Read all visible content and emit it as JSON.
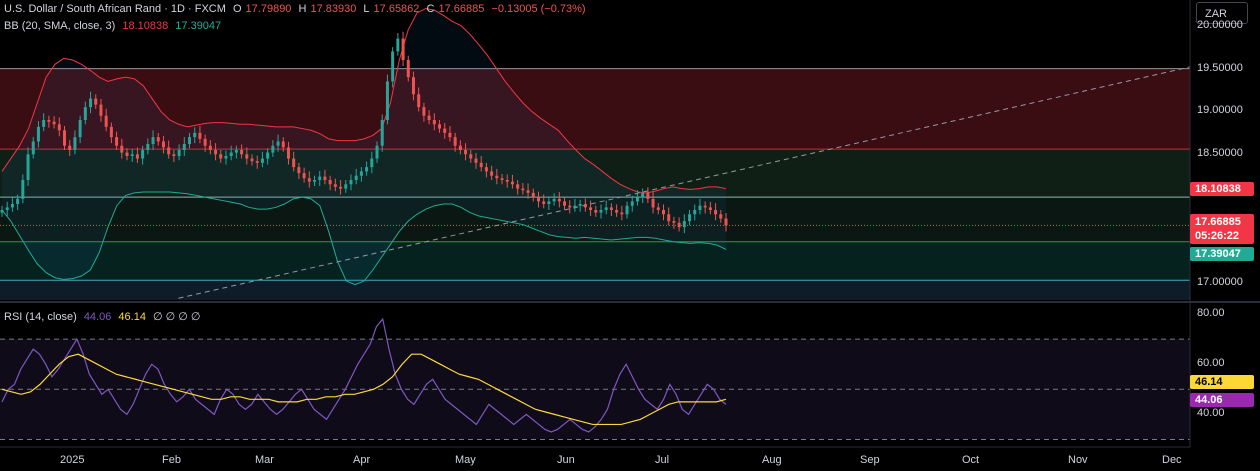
{
  "header": {
    "symbol_title": "U.S. Dollar / South African Rand · 1D · FXCM",
    "ohlc": [
      {
        "key": "O",
        "value": "17.79890"
      },
      {
        "key": "H",
        "value": "17.83930"
      },
      {
        "key": "L",
        "value": "17.65862"
      },
      {
        "key": "C",
        "value": "17.66885"
      }
    ],
    "change": "−0.13005 (−0.73%)"
  },
  "bb_legend": {
    "label": "BB (20, SMA, close, 3)",
    "upper": "18.10838",
    "lower": "17.39047"
  },
  "rsi_legend": {
    "label": "RSI (14, close)",
    "rsi": "44.06",
    "ma": "46.14",
    "extras": "∅ ∅ ∅ ∅"
  },
  "currency_button": "ZAR",
  "badges": {
    "bb_upper": "18.10838",
    "last_price": "17.66885",
    "countdown": "05:26:22",
    "bb_lower": "17.39047",
    "rsi_ma": "46.14",
    "rsi_value": "44.06"
  },
  "colors": {
    "up": "#26a69a",
    "down": "#ef5350",
    "bb_upper": "#f23645",
    "bb_lower": "#22ab94",
    "rsi": "#7e57c2",
    "rsi_ma": "#fdd835"
  },
  "chart_data": [
    {
      "type": "candlestick",
      "title": "U.S. Dollar / South African Rand · 1D · FXCM",
      "price_ticks": [
        "20.00000",
        "19.50000",
        "19.00000",
        "18.50000",
        "17.00000"
      ],
      "ylim": [
        16.8,
        20.3
      ],
      "time_ticks": [
        "2025",
        "Feb",
        "Mar",
        "Apr",
        "May",
        "Jun",
        "Jul",
        "Aug",
        "Sep",
        "Oct",
        "Nov",
        "Dec"
      ],
      "horizontal_levels": [
        19.5,
        18.56,
        18.0,
        17.48,
        17.03
      ],
      "zones": [
        {
          "from": 18.56,
          "to": 19.5,
          "color": "#3a0d12"
        },
        {
          "from": 18.0,
          "to": 18.56,
          "color": "#101f16"
        },
        {
          "from": 17.48,
          "to": 18.0,
          "color": "#0b1712"
        },
        {
          "from": 17.03,
          "to": 17.48,
          "color": "#06221f"
        },
        {
          "from": 16.8,
          "to": 17.03,
          "color": "#0e1c2a"
        }
      ],
      "trendline": {
        "from": [
          0.15,
          16.82
        ],
        "to": [
          1.0,
          19.52
        ]
      },
      "close": [
        17.85,
        17.88,
        17.92,
        17.98,
        18.2,
        18.5,
        18.65,
        18.82,
        18.9,
        18.88,
        18.85,
        18.78,
        18.6,
        18.55,
        18.7,
        18.9,
        19.05,
        19.15,
        19.08,
        18.95,
        18.82,
        18.7,
        18.6,
        18.52,
        18.48,
        18.5,
        18.45,
        18.55,
        18.62,
        18.7,
        18.65,
        18.58,
        18.5,
        18.48,
        18.55,
        18.62,
        18.7,
        18.75,
        18.68,
        18.6,
        18.55,
        18.5,
        18.45,
        18.48,
        18.52,
        18.55,
        18.5,
        18.45,
        18.42,
        18.4,
        18.45,
        18.52,
        18.6,
        18.65,
        18.58,
        18.45,
        18.35,
        18.28,
        18.22,
        18.18,
        18.2,
        18.24,
        18.2,
        18.15,
        18.12,
        18.1,
        18.15,
        18.2,
        18.25,
        18.3,
        18.35,
        18.45,
        18.6,
        18.9,
        19.35,
        19.7,
        19.85,
        19.6,
        19.4,
        19.2,
        19.05,
        18.95,
        18.9,
        18.85,
        18.8,
        18.75,
        18.7,
        18.6,
        18.55,
        18.5,
        18.45,
        18.4,
        18.35,
        18.3,
        18.25,
        18.22,
        18.2,
        18.18,
        18.15,
        18.1,
        18.08,
        18.05,
        18.0,
        17.95,
        17.92,
        17.95,
        17.98,
        17.95,
        17.9,
        17.88,
        17.9,
        17.92,
        17.88,
        17.85,
        17.82,
        17.85,
        17.88,
        17.85,
        17.82,
        17.8,
        17.9,
        17.95,
        18.0,
        18.05,
        17.98,
        17.88,
        17.85,
        17.8,
        17.72,
        17.7,
        17.65,
        17.72,
        17.8,
        17.85,
        17.9,
        17.88,
        17.85,
        17.8,
        17.75,
        17.67
      ],
      "bb_upper": [
        18.3,
        18.45,
        18.6,
        18.8,
        19.1,
        19.4,
        19.55,
        19.62,
        19.6,
        19.55,
        19.48,
        19.4,
        19.35,
        19.38,
        19.4,
        19.38,
        19.3,
        19.15,
        19.0,
        18.9,
        18.85,
        18.82,
        18.84,
        18.86,
        18.87,
        18.87,
        18.86,
        18.85,
        18.85,
        18.84,
        18.83,
        18.82,
        18.82,
        18.82,
        18.8,
        18.78,
        18.74,
        18.68,
        18.66,
        18.66,
        18.66,
        18.68,
        18.72,
        18.8,
        19.1,
        19.6,
        19.95,
        20.15,
        20.2,
        20.18,
        20.12,
        20.05,
        20.0,
        19.9,
        19.78,
        19.65,
        19.5,
        19.35,
        19.22,
        19.1,
        19.0,
        18.92,
        18.85,
        18.78,
        18.66,
        18.55,
        18.45,
        18.38,
        18.3,
        18.22,
        18.15,
        18.1,
        18.06,
        18.05,
        18.07,
        18.1,
        18.12,
        18.1,
        18.09,
        18.1,
        18.12,
        18.12,
        18.1
      ],
      "bb_lower": [
        17.85,
        17.72,
        17.55,
        17.38,
        17.22,
        17.12,
        17.06,
        17.04,
        17.05,
        17.08,
        17.15,
        17.35,
        17.65,
        17.9,
        18.02,
        18.05,
        18.06,
        18.06,
        18.06,
        18.06,
        18.05,
        18.04,
        18.02,
        18.0,
        17.98,
        17.96,
        17.94,
        17.92,
        17.88,
        17.86,
        17.86,
        17.88,
        17.92,
        17.98,
        18.0,
        17.98,
        17.9,
        17.6,
        17.25,
        17.02,
        16.98,
        17.02,
        17.15,
        17.3,
        17.45,
        17.6,
        17.72,
        17.8,
        17.86,
        17.9,
        17.92,
        17.92,
        17.88,
        17.82,
        17.78,
        17.76,
        17.74,
        17.72,
        17.7,
        17.68,
        17.64,
        17.6,
        17.56,
        17.54,
        17.53,
        17.52,
        17.53,
        17.52,
        17.51,
        17.5,
        17.51,
        17.52,
        17.53,
        17.53,
        17.52,
        17.5,
        17.48,
        17.47,
        17.46,
        17.47,
        17.46,
        17.44,
        17.39
      ]
    },
    {
      "type": "line",
      "title": "RSI (14, close)",
      "y_ticks": [
        "80.00",
        "60.00",
        "40.00"
      ],
      "ylim": [
        27,
        84
      ],
      "levels": [
        70,
        50,
        30
      ],
      "series": [
        {
          "name": "RSI",
          "values": [
            45,
            50,
            52,
            58,
            62,
            66,
            64,
            60,
            55,
            58,
            62,
            66,
            70,
            64,
            56,
            52,
            48,
            50,
            46,
            42,
            40,
            44,
            50,
            56,
            60,
            58,
            52,
            48,
            45,
            47,
            50,
            46,
            44,
            42,
            40,
            46,
            50,
            48,
            44,
            42,
            44,
            48,
            45,
            42,
            40,
            42,
            45,
            48,
            50,
            46,
            42,
            40,
            38,
            42,
            46,
            50,
            55,
            60,
            64,
            68,
            75,
            78,
            66,
            56,
            50,
            46,
            44,
            48,
            52,
            54,
            50,
            46,
            44,
            42,
            40,
            38,
            36,
            40,
            44,
            42,
            40,
            38,
            36,
            38,
            40,
            38,
            36,
            34,
            33,
            34,
            36,
            38,
            36,
            34,
            33,
            35,
            38,
            42,
            50,
            56,
            60,
            55,
            50,
            46,
            44,
            42,
            46,
            52,
            48,
            42,
            40,
            44,
            48,
            52,
            50,
            46,
            44
          ]
        },
        {
          "name": "RSI MA",
          "values": [
            50,
            49,
            48,
            49,
            52,
            56,
            60,
            63,
            64,
            62,
            60,
            58,
            56,
            55,
            54,
            53,
            52,
            51,
            50,
            49,
            48,
            47,
            46,
            46,
            47,
            47,
            46,
            46,
            46,
            45,
            45,
            45,
            46,
            46,
            47,
            47,
            48,
            48,
            49,
            50,
            52,
            55,
            60,
            64,
            64,
            62,
            60,
            58,
            56,
            55,
            54,
            52,
            50,
            48,
            46,
            44,
            42,
            41,
            40,
            39,
            38,
            37,
            36,
            36,
            36,
            36,
            37,
            38,
            40,
            42,
            44,
            45,
            45,
            45,
            45,
            45,
            46
          ]
        }
      ]
    }
  ]
}
